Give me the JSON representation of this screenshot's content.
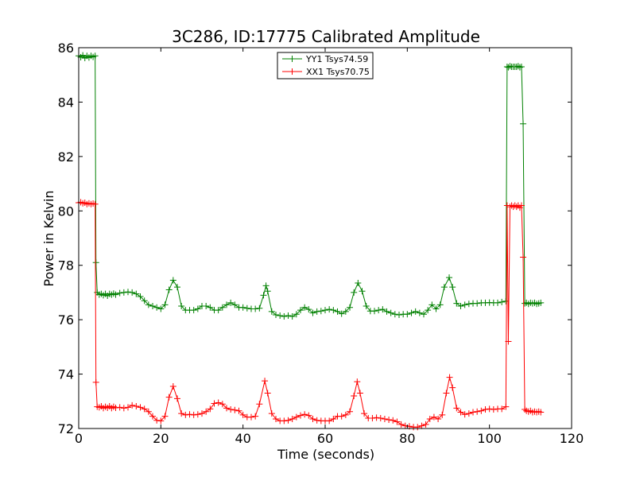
{
  "chart_data": {
    "type": "line",
    "title": "3C286, ID:17775 Calibrated Amplitude",
    "xlabel": "Time (seconds)",
    "ylabel": "Power in Kelvin",
    "xlim": [
      0,
      120
    ],
    "ylim": [
      72,
      86
    ],
    "xticks": [
      0,
      20,
      40,
      60,
      80,
      100,
      120
    ],
    "yticks": [
      72,
      74,
      76,
      78,
      80,
      82,
      84,
      86
    ],
    "grid": false,
    "legend_position": "top-center",
    "marker": "+",
    "series": [
      {
        "name": "YY1 Tsys74.59",
        "color": "#008000",
        "points": [
          [
            0.0,
            85.7
          ],
          [
            0.5,
            85.65
          ],
          [
            1.0,
            85.72
          ],
          [
            1.5,
            85.62
          ],
          [
            2.0,
            85.7
          ],
          [
            2.5,
            85.64
          ],
          [
            3.0,
            85.7
          ],
          [
            3.5,
            85.66
          ],
          [
            4.0,
            85.7
          ],
          [
            4.2,
            78.1
          ],
          [
            4.5,
            77.0
          ],
          [
            5.0,
            76.92
          ],
          [
            5.5,
            76.95
          ],
          [
            6.0,
            76.9
          ],
          [
            6.5,
            76.95
          ],
          [
            7.0,
            76.88
          ],
          [
            7.5,
            76.95
          ],
          [
            8.0,
            76.92
          ],
          [
            8.5,
            76.96
          ],
          [
            9.0,
            76.92
          ],
          [
            10,
            76.98
          ],
          [
            11,
            77.0
          ],
          [
            12,
            77.02
          ],
          [
            13,
            77.0
          ],
          [
            14,
            76.95
          ],
          [
            15,
            76.85
          ],
          [
            16,
            76.7
          ],
          [
            17,
            76.55
          ],
          [
            18,
            76.5
          ],
          [
            19,
            76.45
          ],
          [
            20,
            76.4
          ],
          [
            21,
            76.55
          ],
          [
            22,
            77.1
          ],
          [
            23,
            77.45
          ],
          [
            24,
            77.2
          ],
          [
            25,
            76.5
          ],
          [
            26,
            76.35
          ],
          [
            27,
            76.35
          ],
          [
            28,
            76.35
          ],
          [
            29,
            76.4
          ],
          [
            30,
            76.5
          ],
          [
            31,
            76.5
          ],
          [
            32,
            76.45
          ],
          [
            33,
            76.35
          ],
          [
            34,
            76.35
          ],
          [
            35,
            76.45
          ],
          [
            36,
            76.55
          ],
          [
            37,
            76.62
          ],
          [
            38,
            76.55
          ],
          [
            39,
            76.45
          ],
          [
            40,
            76.45
          ],
          [
            41,
            76.42
          ],
          [
            42,
            76.4
          ],
          [
            43,
            76.4
          ],
          [
            44,
            76.42
          ],
          [
            45,
            76.9
          ],
          [
            45.6,
            77.25
          ],
          [
            46,
            77.05
          ],
          [
            47,
            76.3
          ],
          [
            48,
            76.18
          ],
          [
            49,
            76.15
          ],
          [
            50,
            76.12
          ],
          [
            51,
            76.15
          ],
          [
            52,
            76.12
          ],
          [
            53,
            76.2
          ],
          [
            54,
            76.35
          ],
          [
            55,
            76.45
          ],
          [
            56,
            76.38
          ],
          [
            57,
            76.25
          ],
          [
            58,
            76.3
          ],
          [
            59,
            76.32
          ],
          [
            60,
            76.35
          ],
          [
            61,
            76.38
          ],
          [
            62,
            76.35
          ],
          [
            63,
            76.3
          ],
          [
            64,
            76.22
          ],
          [
            65,
            76.3
          ],
          [
            66,
            76.45
          ],
          [
            67,
            77.0
          ],
          [
            68,
            77.35
          ],
          [
            69,
            77.05
          ],
          [
            70,
            76.5
          ],
          [
            71,
            76.32
          ],
          [
            72,
            76.32
          ],
          [
            73,
            76.35
          ],
          [
            74,
            76.38
          ],
          [
            75,
            76.3
          ],
          [
            76,
            76.25
          ],
          [
            77,
            76.2
          ],
          [
            78,
            76.18
          ],
          [
            79,
            76.2
          ],
          [
            80,
            76.2
          ],
          [
            81,
            76.25
          ],
          [
            82,
            76.3
          ],
          [
            83,
            76.25
          ],
          [
            84,
            76.2
          ],
          [
            85,
            76.35
          ],
          [
            86,
            76.55
          ],
          [
            87,
            76.4
          ],
          [
            88,
            76.55
          ],
          [
            89,
            77.2
          ],
          [
            90.2,
            77.55
          ],
          [
            91,
            77.2
          ],
          [
            92,
            76.6
          ],
          [
            93,
            76.5
          ],
          [
            94,
            76.55
          ],
          [
            95,
            76.58
          ],
          [
            96,
            76.6
          ],
          [
            97,
            76.6
          ],
          [
            98,
            76.62
          ],
          [
            99,
            76.62
          ],
          [
            100,
            76.63
          ],
          [
            101,
            76.62
          ],
          [
            102,
            76.62
          ],
          [
            103,
            76.65
          ],
          [
            104,
            76.68
          ],
          [
            104.3,
            85.3
          ],
          [
            104.6,
            85.28
          ],
          [
            105,
            85.32
          ],
          [
            105.4,
            85.3
          ],
          [
            105.8,
            85.3
          ],
          [
            106.2,
            85.3
          ],
          [
            106.6,
            85.3
          ],
          [
            107,
            85.32
          ],
          [
            107.4,
            85.28
          ],
          [
            107.8,
            85.3
          ],
          [
            108.2,
            83.2
          ],
          [
            108.6,
            76.6
          ],
          [
            109,
            76.62
          ],
          [
            109.5,
            76.58
          ],
          [
            110,
            76.62
          ],
          [
            110.5,
            76.6
          ],
          [
            111,
            76.62
          ],
          [
            111.5,
            76.58
          ],
          [
            112,
            76.6
          ],
          [
            112.5,
            76.62
          ]
        ]
      },
      {
        "name": "XX1 Tsys70.75",
        "color": "#ff0000",
        "points": [
          [
            0.0,
            80.3
          ],
          [
            0.5,
            80.32
          ],
          [
            1.0,
            80.28
          ],
          [
            1.5,
            80.3
          ],
          [
            2.0,
            80.25
          ],
          [
            2.5,
            80.28
          ],
          [
            3.0,
            80.25
          ],
          [
            3.5,
            80.27
          ],
          [
            4.0,
            80.25
          ],
          [
            4.2,
            73.7
          ],
          [
            4.5,
            72.8
          ],
          [
            5.0,
            72.78
          ],
          [
            5.5,
            72.82
          ],
          [
            6.0,
            72.75
          ],
          [
            6.5,
            72.8
          ],
          [
            7.0,
            72.76
          ],
          [
            7.5,
            72.82
          ],
          [
            8.0,
            72.75
          ],
          [
            8.5,
            72.8
          ],
          [
            9.0,
            72.76
          ],
          [
            10,
            72.78
          ],
          [
            11,
            72.75
          ],
          [
            12,
            72.78
          ],
          [
            13,
            72.85
          ],
          [
            14,
            72.82
          ],
          [
            15,
            72.78
          ],
          [
            16,
            72.72
          ],
          [
            17,
            72.62
          ],
          [
            18,
            72.45
          ],
          [
            19,
            72.3
          ],
          [
            20,
            72.28
          ],
          [
            21,
            72.45
          ],
          [
            22,
            73.15
          ],
          [
            23,
            73.55
          ],
          [
            24,
            73.1
          ],
          [
            25,
            72.55
          ],
          [
            26,
            72.5
          ],
          [
            27,
            72.52
          ],
          [
            28,
            72.5
          ],
          [
            29,
            72.52
          ],
          [
            30,
            72.55
          ],
          [
            31,
            72.62
          ],
          [
            32,
            72.72
          ],
          [
            33,
            72.92
          ],
          [
            34,
            72.95
          ],
          [
            35,
            72.9
          ],
          [
            36,
            72.75
          ],
          [
            37,
            72.7
          ],
          [
            38,
            72.68
          ],
          [
            39,
            72.65
          ],
          [
            40,
            72.5
          ],
          [
            41,
            72.42
          ],
          [
            42,
            72.42
          ],
          [
            43,
            72.45
          ],
          [
            44,
            72.9
          ],
          [
            45.3,
            73.75
          ],
          [
            46,
            73.3
          ],
          [
            47,
            72.55
          ],
          [
            48,
            72.35
          ],
          [
            49,
            72.28
          ],
          [
            50,
            72.28
          ],
          [
            51,
            72.3
          ],
          [
            52,
            72.35
          ],
          [
            53,
            72.42
          ],
          [
            54,
            72.48
          ],
          [
            55,
            72.52
          ],
          [
            56,
            72.48
          ],
          [
            57,
            72.35
          ],
          [
            58,
            72.3
          ],
          [
            59,
            72.28
          ],
          [
            60,
            72.28
          ],
          [
            61,
            72.28
          ],
          [
            62,
            72.35
          ],
          [
            63,
            72.45
          ],
          [
            64,
            72.45
          ],
          [
            65,
            72.5
          ],
          [
            66,
            72.62
          ],
          [
            67,
            73.2
          ],
          [
            67.8,
            73.72
          ],
          [
            68.5,
            73.3
          ],
          [
            69.5,
            72.55
          ],
          [
            70.5,
            72.38
          ],
          [
            71.5,
            72.38
          ],
          [
            72.5,
            72.4
          ],
          [
            73.5,
            72.38
          ],
          [
            74.5,
            72.35
          ],
          [
            75.5,
            72.32
          ],
          [
            76.5,
            72.3
          ],
          [
            77.5,
            72.25
          ],
          [
            78.5,
            72.15
          ],
          [
            79.5,
            72.1
          ],
          [
            80.5,
            72.08
          ],
          [
            81.5,
            72.05
          ],
          [
            82.5,
            72.05
          ],
          [
            83.5,
            72.1
          ],
          [
            84.5,
            72.15
          ],
          [
            85.5,
            72.35
          ],
          [
            86.5,
            72.42
          ],
          [
            87.5,
            72.35
          ],
          [
            88.5,
            72.5
          ],
          [
            89.5,
            73.3
          ],
          [
            90.3,
            73.88
          ],
          [
            91,
            73.5
          ],
          [
            92,
            72.75
          ],
          [
            93,
            72.6
          ],
          [
            94,
            72.52
          ],
          [
            95,
            72.55
          ],
          [
            96,
            72.6
          ],
          [
            97,
            72.62
          ],
          [
            98,
            72.65
          ],
          [
            99,
            72.7
          ],
          [
            100,
            72.72
          ],
          [
            101,
            72.7
          ],
          [
            102,
            72.72
          ],
          [
            103,
            72.72
          ],
          [
            104,
            72.8
          ],
          [
            104.3,
            80.2
          ],
          [
            104.6,
            75.2
          ],
          [
            105,
            80.15
          ],
          [
            105.4,
            80.2
          ],
          [
            105.8,
            80.15
          ],
          [
            106.2,
            80.2
          ],
          [
            106.6,
            80.15
          ],
          [
            107,
            80.2
          ],
          [
            107.4,
            80.12
          ],
          [
            107.8,
            80.2
          ],
          [
            108.2,
            78.3
          ],
          [
            108.6,
            72.7
          ],
          [
            109,
            72.65
          ],
          [
            109.5,
            72.62
          ],
          [
            110,
            72.65
          ],
          [
            110.5,
            72.6
          ],
          [
            111,
            72.62
          ],
          [
            111.5,
            72.6
          ],
          [
            112,
            72.62
          ],
          [
            112.5,
            72.6
          ]
        ]
      }
    ]
  }
}
